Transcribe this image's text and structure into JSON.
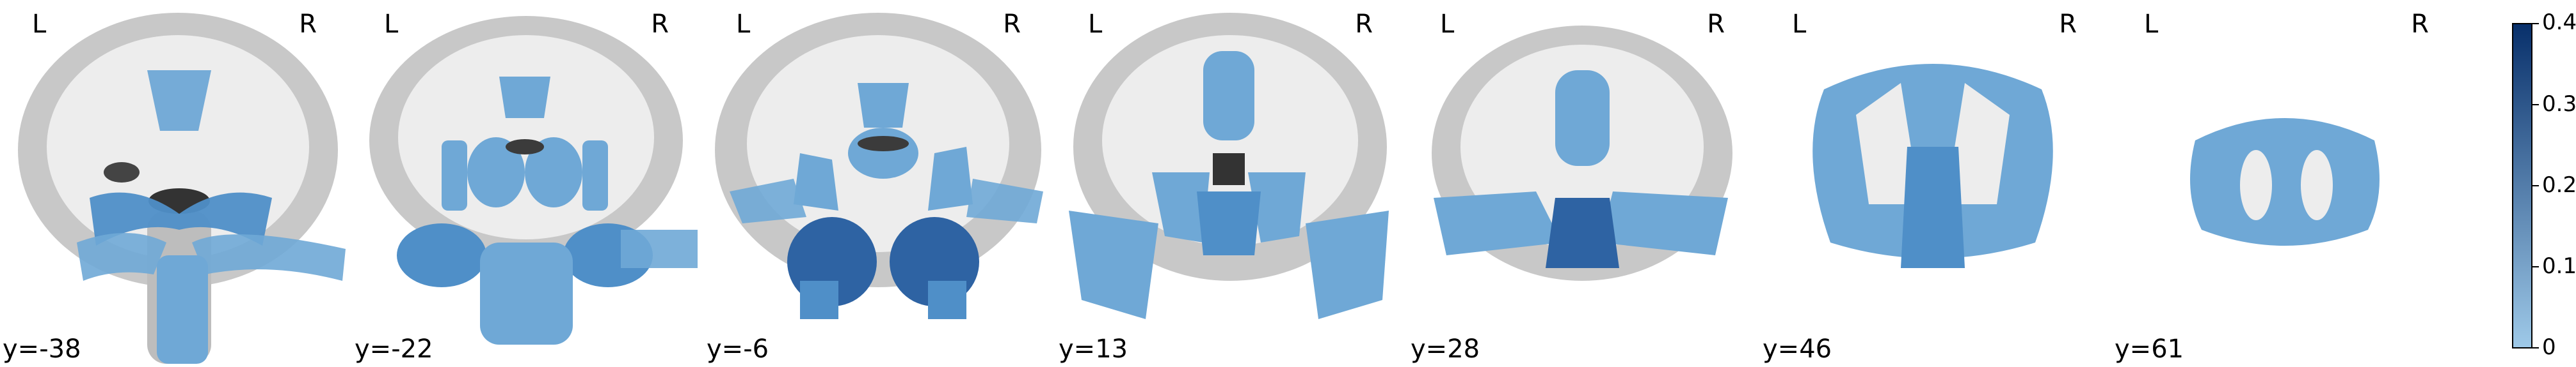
{
  "viewer": {
    "orientation_left": "L",
    "orientation_right": "R",
    "slices": [
      {
        "label": "y=-38"
      },
      {
        "label": "y=-22"
      },
      {
        "label": "y=-6"
      },
      {
        "label": "y=13"
      },
      {
        "label": "y=28"
      },
      {
        "label": "y=46"
      },
      {
        "label": "y=61"
      }
    ],
    "colorbar": {
      "ticks": [
        "0.4",
        "0.3",
        "0.2",
        "0.1",
        "0"
      ],
      "min": 0,
      "max": 0.4,
      "color_low": "#9ec9e8",
      "color_high": "#08306b"
    },
    "colors": {
      "brain_gray": "#c9c9c9",
      "white_matter": "#ececec",
      "overlay_light": "#6fa8d6",
      "overlay_mid": "#4f8fc8",
      "overlay_dark": "#2e63a3"
    }
  }
}
